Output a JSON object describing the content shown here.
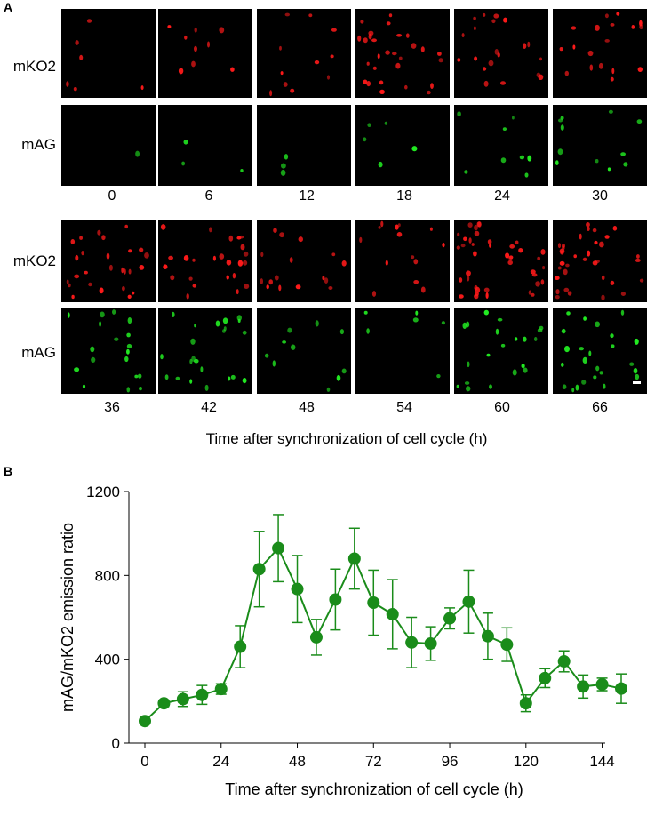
{
  "panel_a": {
    "label": "A",
    "row_labels": {
      "red": "mKO2",
      "green": "mAG"
    },
    "colors": {
      "red": "#ff1a1a",
      "green": "#22ee22",
      "background": "#000000",
      "scale_bar": "#ffffff"
    },
    "top_block_times": [
      "0",
      "6",
      "12",
      "18",
      "24",
      "30"
    ],
    "bottom_block_times": [
      "36",
      "42",
      "48",
      "54",
      "60",
      "66"
    ],
    "top_red_density": [
      6,
      9,
      11,
      28,
      20,
      18
    ],
    "top_green_density": [
      1,
      3,
      3,
      5,
      8,
      11
    ],
    "bottom_red_density": [
      26,
      24,
      16,
      14,
      40,
      34
    ],
    "bottom_green_density": [
      18,
      22,
      10,
      6,
      20,
      24
    ],
    "x_caption": "Time after synchronization of cell cycle (h)"
  },
  "panel_b": {
    "label": "B"
  },
  "chart_data": {
    "type": "line",
    "title": "",
    "xlabel": "Time after synchronization of cell cycle (h)",
    "ylabel": "mAG/mKO2 emission ratio",
    "xlim": [
      0,
      150
    ],
    "ylim": [
      0,
      1200
    ],
    "xticks": [
      0,
      24,
      48,
      72,
      96,
      120,
      144
    ],
    "yticks": [
      0,
      400,
      800,
      1200
    ],
    "grid": false,
    "color": "#1a8c1a",
    "series": [
      {
        "x": [
          0,
          6,
          12,
          18,
          24,
          30,
          36,
          42,
          48,
          54,
          60,
          66,
          72,
          78,
          84,
          90,
          96,
          102,
          108,
          114,
          120,
          126,
          132,
          138,
          144,
          150
        ],
        "y": [
          105,
          190,
          210,
          230,
          258,
          460,
          830,
          930,
          735,
          505,
          685,
          880,
          670,
          615,
          480,
          475,
          595,
          675,
          510,
          470,
          190,
          310,
          390,
          270,
          280,
          260
        ],
        "error": [
          10,
          15,
          35,
          45,
          25,
          100,
          180,
          160,
          160,
          85,
          145,
          145,
          155,
          165,
          120,
          80,
          50,
          150,
          110,
          80,
          40,
          45,
          50,
          55,
          30,
          70
        ]
      }
    ]
  }
}
